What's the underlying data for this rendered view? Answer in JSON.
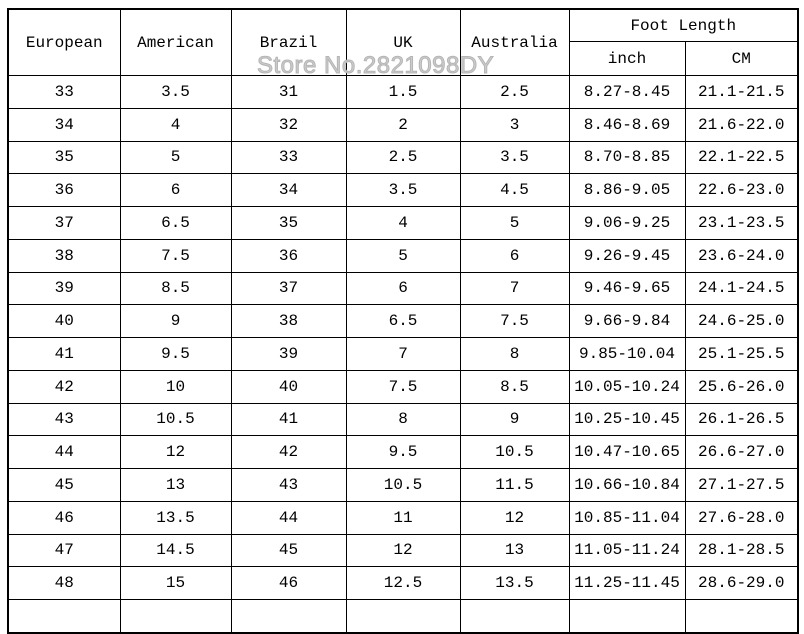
{
  "watermark": "Store No.2821098DY",
  "colors": {
    "background": "#ffffff",
    "border": "#000000",
    "text": "#000000",
    "watermark": "#cccccc"
  },
  "table": {
    "headers": [
      "European",
      "American",
      "Brazil",
      "UK",
      "Australia"
    ],
    "foot_length_header": "Foot Length",
    "foot_length_subheaders": [
      "inch",
      "CM"
    ],
    "rows": [
      [
        "33",
        "3.5",
        "31",
        "1.5",
        "2.5",
        "8.27-8.45",
        "21.1-21.5"
      ],
      [
        "34",
        "4",
        "32",
        "2",
        "3",
        "8.46-8.69",
        "21.6-22.0"
      ],
      [
        "35",
        "5",
        "33",
        "2.5",
        "3.5",
        "8.70-8.85",
        "22.1-22.5"
      ],
      [
        "36",
        "6",
        "34",
        "3.5",
        "4.5",
        "8.86-9.05",
        "22.6-23.0"
      ],
      [
        "37",
        "6.5",
        "35",
        "4",
        "5",
        "9.06-9.25",
        "23.1-23.5"
      ],
      [
        "38",
        "7.5",
        "36",
        "5",
        "6",
        "9.26-9.45",
        "23.6-24.0"
      ],
      [
        "39",
        "8.5",
        "37",
        "6",
        "7",
        "9.46-9.65",
        "24.1-24.5"
      ],
      [
        "40",
        "9",
        "38",
        "6.5",
        "7.5",
        "9.66-9.84",
        "24.6-25.0"
      ],
      [
        "41",
        "9.5",
        "39",
        "7",
        "8",
        "9.85-10.04",
        "25.1-25.5"
      ],
      [
        "42",
        "10",
        "40",
        "7.5",
        "8.5",
        "10.05-10.24",
        "25.6-26.0"
      ],
      [
        "43",
        "10.5",
        "41",
        "8",
        "9",
        "10.25-10.45",
        "26.1-26.5"
      ],
      [
        "44",
        "12",
        "42",
        "9.5",
        "10.5",
        "10.47-10.65",
        "26.6-27.0"
      ],
      [
        "45",
        "13",
        "43",
        "10.5",
        "11.5",
        "10.66-10.84",
        "27.1-27.5"
      ],
      [
        "46",
        "13.5",
        "44",
        "11",
        "12",
        "10.85-11.04",
        "27.6-28.0"
      ],
      [
        "47",
        "14.5",
        "45",
        "12",
        "13",
        "11.05-11.24",
        "28.1-28.5"
      ],
      [
        "48",
        "15",
        "46",
        "12.5",
        "13.5",
        "11.25-11.45",
        "28.6-29.0"
      ]
    ]
  }
}
